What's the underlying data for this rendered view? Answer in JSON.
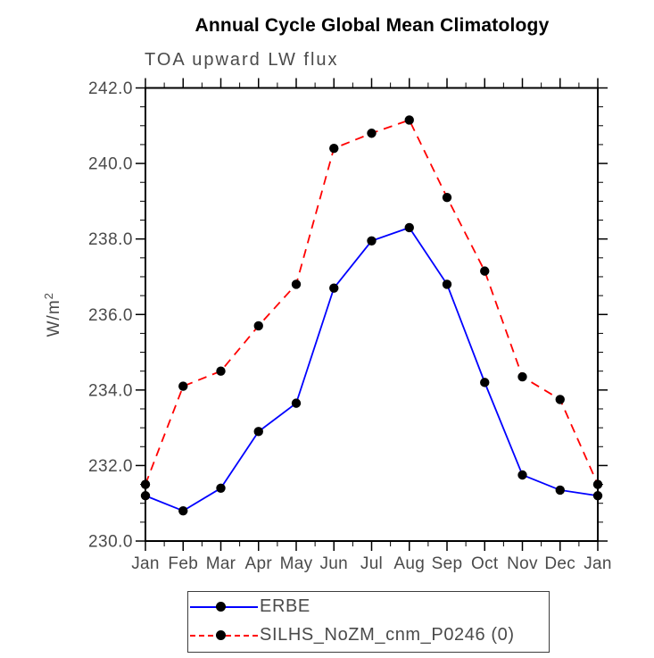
{
  "chart_data": {
    "type": "line",
    "title": "Annual Cycle Global Mean Climatology",
    "subtitle": "TOA upward LW flux",
    "ylabel": {
      "base": "W/m",
      "sup": "2"
    },
    "xlabel": "",
    "categories": [
      "Jan",
      "Feb",
      "Mar",
      "Apr",
      "May",
      "Jun",
      "Jul",
      "Aug",
      "Sep",
      "Oct",
      "Nov",
      "Dec",
      "Jan"
    ],
    "ylim": [
      230.0,
      242.0
    ],
    "ytick_major_interval": 2.0,
    "ytick_minor_interval": 0.5,
    "ytick_labels": [
      "242.0",
      "240.0",
      "238.0",
      "236.0",
      "234.0",
      "232.0",
      "230.0"
    ],
    "grid": false,
    "legend_position": "bottom",
    "frame_color": "#000000",
    "tick_label_color": "#4a4a4a",
    "series": [
      {
        "name": "ERBE",
        "color": "#0000ff",
        "style": "solid",
        "marker": "filled-circle",
        "marker_color": "#000000",
        "values": [
          231.2,
          230.8,
          231.4,
          232.9,
          233.65,
          236.7,
          237.95,
          238.3,
          236.8,
          234.2,
          231.75,
          231.35,
          231.2
        ]
      },
      {
        "name": "SILHS_NoZM_cnm_P0246 (0)",
        "color": "#ff0000",
        "style": "dashed",
        "marker": "filled-circle",
        "marker_color": "#000000",
        "values": [
          231.5,
          234.1,
          234.5,
          235.7,
          236.8,
          240.4,
          240.8,
          241.15,
          239.1,
          237.15,
          234.35,
          233.75,
          231.5
        ]
      }
    ]
  }
}
